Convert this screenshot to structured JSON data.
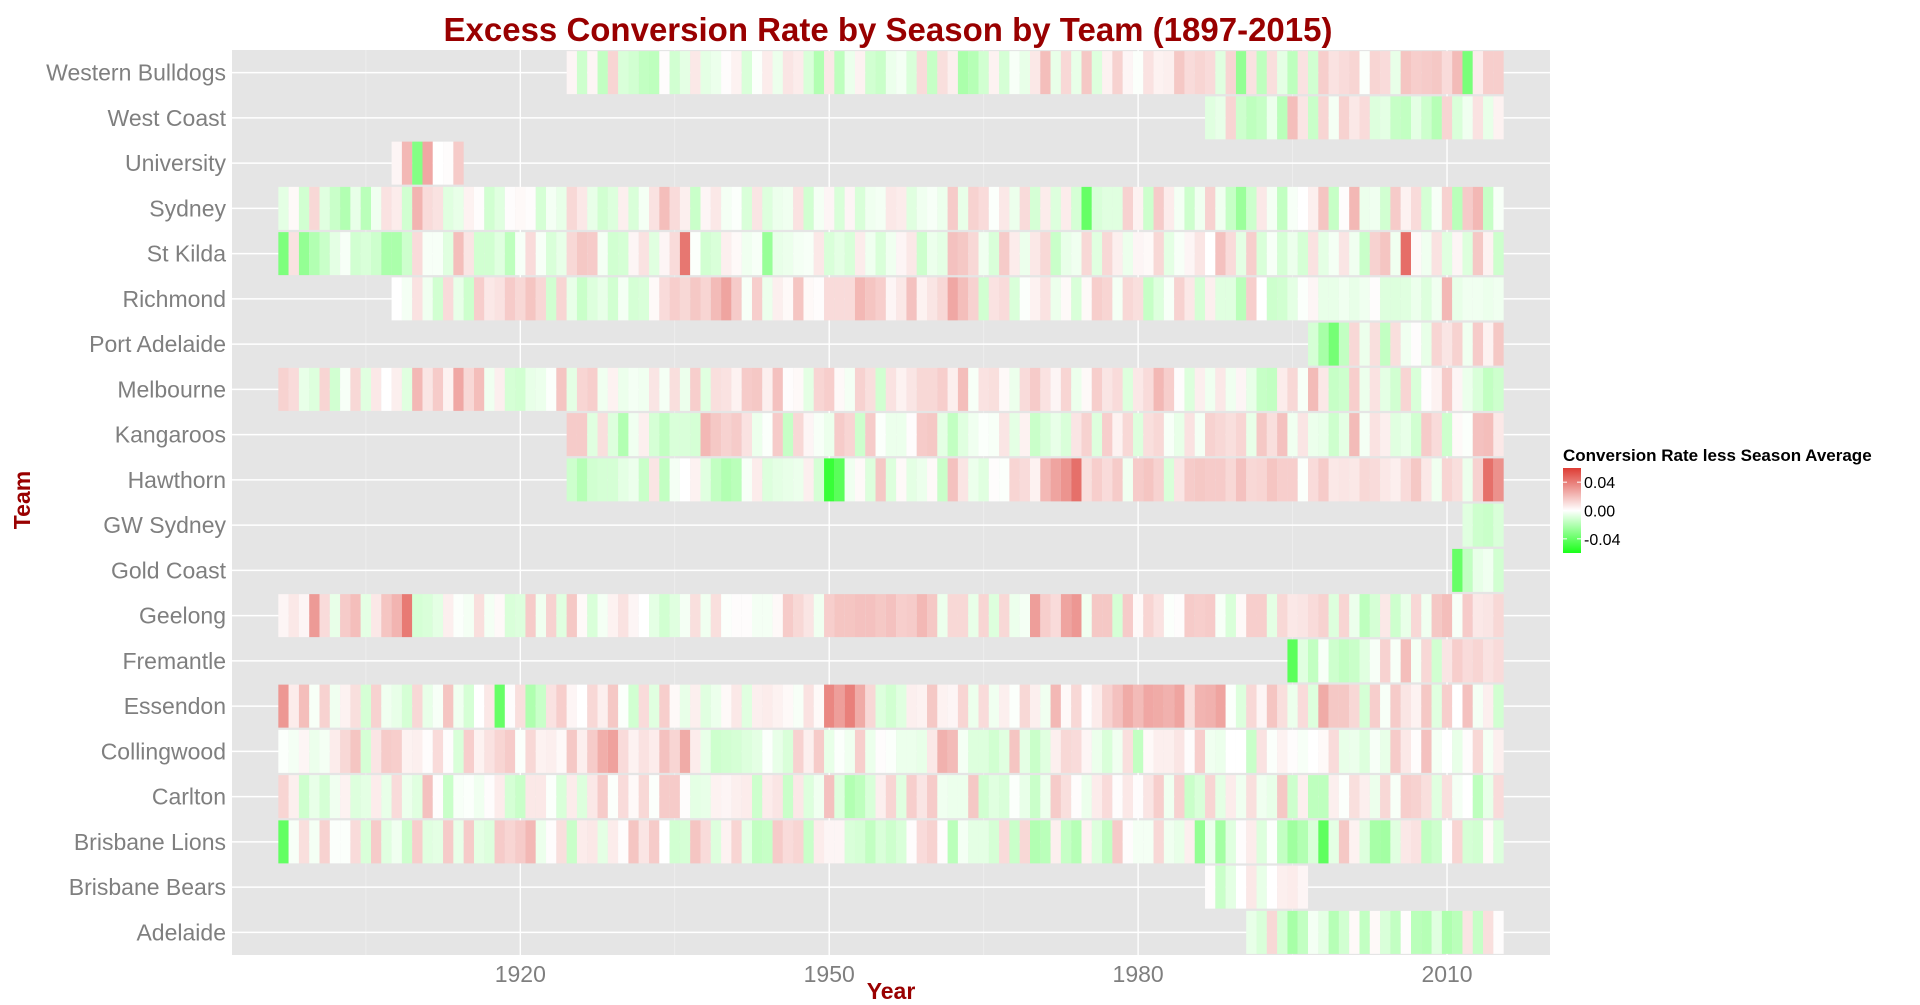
{
  "chart_data": {
    "type": "heatmap",
    "title": "Excess Conversion Rate by Season by Team (1897-2015)",
    "xlabel": "Year",
    "ylabel": "Team",
    "xlim": [
      1892,
      2020
    ],
    "x_ticks": [
      1920,
      1950,
      1980,
      2010
    ],
    "grid": true,
    "legend": {
      "title": "Conversion Rate less Season Average",
      "position": "right",
      "ticks": [
        0.04,
        0.0,
        -0.04
      ],
      "tick_labels": [
        "0.04",
        "0.00",
        "-0.04"
      ],
      "range": [
        -0.06,
        0.06
      ],
      "colors": {
        "high": "#dd3c34",
        "mid": "#ffffff",
        "low": "#19ff19"
      }
    },
    "teams": [
      "Adelaide",
      "Brisbane Bears",
      "Brisbane Lions",
      "Carlton",
      "Collingwood",
      "Essendon",
      "Fremantle",
      "Geelong",
      "Gold Coast",
      "GW Sydney",
      "Hawthorn",
      "Kangaroos",
      "Melbourne",
      "Port Adelaide",
      "Richmond",
      "St Kilda",
      "Sydney",
      "University",
      "West Coast",
      "Western Bulldogs"
    ],
    "series": [
      {
        "team": "Adelaide",
        "values": "1991:-0.006,1992:-0.01,1993:0.012,1994:-0.011,1995:-0.023,1996:-0.016,1997:-0.003,1998:-0.007,1999:-0.019,2000:-0.012,2001:0.002,2002:-0.016,2003:0.002,2004:-0.01,2005:-0.016,2006:0.001,2007:-0.018,2008:-0.019,2009:-0.008,2010:-0.021,2011:-0.018,2012:0.008,2013:-0.015,2014:0.01,2015:0.001"
      },
      {
        "team": "Brisbane Bears",
        "values": "1987:0.001,1988:-0.014,1989:-0.007,1990:0.0,1991:0.007,1992:-0.006,1993:0.0,1994:0.005,1995:0.006,1996:0.003"
      },
      {
        "team": "Brisbane Lions",
        "values": "1897:-0.041,1898:-0.002,1899:0.01,1900:-0.003,1901:0.014,1902:-0.001,1903:-0.001,1904:0.011,1905:-0.01,1906:0.016,1907:-0.008,1908:-0.004,1909:-0.013,1910:0.015,1911:-0.008,1912:-0.007,1913:0.016,1914:-0.006,1915:0.016,1916:-0.007,1917:-0.009,1918:0.016,1919:0.013,1920:0.016,1921:0.022,1922:-0.005,1923:0.001,1924:0.01,1925:-0.014,1926:0.006,1927:0.007,1928:-0.007,1929:0.006,1930:0.001,1931:0.018,1932:0.008,1933:0.016,1934:0.0,1935:-0.012,1936:-0.011,1937:0.018,1938:0.011,1939:-0.009,1940:0.004,1941:0.013,1942:-0.007,1943:-0.016,1944:-0.015,1945:0.016,1946:0.011,1947:0.013,1948:-0.014,1949:0.006,1950:0.003,1951:0.003,1952:-0.01,1953:-0.011,1954:-0.016,1955:-0.01,1956:-0.013,1957:-0.01,1958:0.001,1959:0.011,1960:0.014,1961:0.001,1962:-0.018,1963:-0.003,1964:-0.007,1965:-0.007,1966:-0.011,1967:0.011,1968:-0.014,1969:0.012,1970:-0.02,1971:-0.018,1972:0.005,1973:-0.015,1974:-0.019,1975:0.004,1976:-0.009,1977:-0.016,1978:0.016,1979:0.001,1980:-0.003,1981:-0.003,1982:0.012,1983:-0.004,1984:-0.006,1985:0.005,1986:-0.028,1987:-0.005,1988:-0.024,1989:-0.008,1990:0.001,1991:0.006,1992:-0.009,1993:-0.001,1994:-0.016,1995:-0.025,1996:-0.02,1997:-0.01,1998:-0.042,1999:-0.007,2000:0.017,2001:0.004,2002:-0.009,2003:-0.023,2004:-0.024,2005:-0.008,2006:0.007,2007:0.009,2008:-0.016,2009:-0.013,2010:0.001,2011:0.013,2012:-0.011,2013:-0.012,2014:0.002,2015:-0.009"
      },
      {
        "team": "Carlton",
        "values": "1897:0.013,1898:0.005,1899:-0.013,1900:-0.006,1901:-0.011,1902:-0.004,1903:0.004,1904:-0.009,1905:-0.007,1906:0.006,1907:-0.006,1908:0.011,1909:-0.005,1910:-0.008,1911:0.019,1912:0.001,1913:-0.014,1914:-0.002,1915:-0.001,1916:-0.004,1917:0.001,1918:0.006,1919:-0.011,1920:-0.014,1921:0.007,1922:0.007,1923:-0.001,1924:-0.01,1925:0.006,1926:-0.009,1927:0.007,1928:0.016,1929:-0.001,1930:0.011,1931:0.002,1932:0.012,1933:-0.001,1934:0.016,1935:0.016,1936:0.001,1937:-0.007,1938:-0.006,1939:0.004,1940:0.003,1941:0.005,1942:0.006,1943:-0.013,1944:0.006,1945:0.008,1946:-0.014,1947:0.007,1948:-0.009,1949:-0.004,1950:0.019,1951:-0.009,1952:-0.02,1953:-0.017,1954:-0.01,1955:0.005,1956:0.013,1957:-0.008,1958:0.015,1959:0.008,1960:0.016,1961:-0.004,1962:-0.005,1963:-0.005,1964:0.017,1965:-0.012,1966:-0.008,1967:-0.01,1968:-0.001,1969:-0.006,1970:-0.014,1971:-0.005,1972:0.016,1973:0.01,1974:0.001,1975:-0.005,1976:0.006,1977:0.011,1978:0.001,1979:0.007,1980:0.001,1981:0.008,1982:0.015,1983:-0.004,1984:0.014,1985:-0.014,1986:-0.01,1987:0.013,1988:-0.007,1989:0.006,1990:-0.004,1991:0.01,1992:-0.004,1993:-0.006,1994:0.017,1995:-0.013,1996:0.005,1997:-0.017,1998:-0.017,1999:0.005,2000:-0.001,2001:0.01,2002:0.005,2003:-0.005,2004:0.012,2005:-0.002,2006:0.015,2007:0.014,2008:0.01,2009:-0.008,2010:0.01,2011:-0.003,2012:0.0,2013:-0.017,2014:-0.006,2015:0.011"
      },
      {
        "team": "Collingwood",
        "values": "1897:-0.001,1898:-0.003,1899:0.003,1900:-0.005,1901:-0.003,1902:0.006,1903:0.012,1904:0.018,1905:-0.011,1906:0.008,1907:0.016,1908:0.015,1909:0.004,1910:0.005,1911:0.001,1912:0.011,1913:0.001,1914:-0.01,1915:0.015,1916:0.004,1917:0.009,1918:0.013,1919:0.016,1920:-0.001,1921:0.012,1922:0.004,1923:0.005,1924:0.002,1925:0.017,1926:0.005,1927:0.016,1928:0.025,1929:0.029,1930:0.011,1931:0.004,1932:0.009,1933:0.006,1934:0.019,1935:0.013,1936:0.026,1937:0.006,1938:-0.006,1939:-0.013,1940:-0.012,1941:-0.011,1942:-0.009,1943:-0.007,1944:-0.001,1945:-0.006,1946:-0.01,1947:0.014,1948:0.005,1949:0.016,1950:-0.006,1951:-0.001,1952:-0.004,1953:0.015,1954:-0.005,1955:0.001,1956:-0.001,1957:-0.005,1958:-0.005,1959:-0.006,1960:0.007,1961:0.024,1962:0.021,1963:-0.003,1964:-0.009,1965:-0.009,1966:-0.012,1967:-0.008,1968:0.018,1969:-0.007,1970:-0.014,1971:-0.008,1972:0.005,1973:0.012,1974:0.011,1975:0.003,1976:-0.005,1977:-0.01,1978:-0.004,1979:0.01,1980:-0.016,1981:0.002,1982:0.005,1983:0.005,1984:0.008,1985:0.001,1986:0.015,1987:-0.004,1988:-0.005,1989:0.0,1990:0.0,1991:-0.014,1992:0.009,1993:-0.001,1994:0.004,1995:0.001,1996:-0.002,1997:0.0,1998:0.002,1999:0.011,2000:-0.006,2001:-0.005,2002:-0.009,2003:-0.002,2004:-0.006,2005:0.016,2006:0.007,2007:0.001,2008:0.019,2009:-0.003,2010:0.0,2011:-0.006,2012:0.001,2013:0.012,2014:-0.003,2015:0.005"
      },
      {
        "team": "Essendon",
        "values": "1897:0.032,1898:0.006,1899:0.02,1900:-0.002,1901:0.014,1902:-0.004,1903:0.004,1904:0.01,1905:-0.011,1906:0.014,1907:-0.004,1908:-0.006,1909:-0.011,1910:0.012,1911:-0.006,1912:-0.002,1913:0.018,1914:-0.004,1915:-0.011,1916:0.0,1917:0.007,1918:-0.04,1919:0.001,1920:0.01,1921:-0.021,1922:-0.014,1923:0.009,1924:0.015,1925:0.003,1926:0.0,1927:0.012,1928:0.005,1929:0.017,1930:-0.001,1931:-0.012,1932:0.011,1933:-0.008,1934:0.015,1935:0.002,1936:-0.006,1937:0.005,1938:-0.008,1939:-0.005,1940:0.002,1941:0.007,1942:-0.008,1943:0.005,1944:0.006,1945:0.004,1946:0.002,1947:-0.002,1948:0.009,1949:0.002,1950:0.037,1951:0.03,1952:0.039,1953:0.026,1954:0.012,1955:-0.009,1956:-0.012,1957:-0.008,1958:0.005,1959:0.004,1960:0.017,1961:0.004,1962:0.003,1963:0.013,1964:-0.005,1965:0.011,1966:-0.004,1967:0.005,1968:-0.001,1969:0.012,1970:0.005,1971:-0.004,1972:0.022,1973:0.002,1974:0.012,1975:0.001,1976:0.006,1977:0.014,1978:0.019,1979:0.026,1980:0.021,1981:0.027,1982:0.026,1983:0.024,1984:0.028,1985:0.01,1986:0.023,1987:0.024,1988:0.028,1989:-0.001,1990:-0.009,1991:0.012,1992:0.003,1993:0.018,1994:0.01,1995:-0.005,1996:0.011,1997:-0.009,1998:0.026,1999:0.017,2000:0.017,2001:0.012,2002:-0.011,2003:0.015,2004:-0.002,2005:0.016,2006:0.008,2007:0.004,2008:0.017,2009:-0.008,2010:0.015,2011:0.0,2012:0.019,2013:-0.003,2014:0.005,2015:-0.012"
      },
      {
        "team": "Fremantle",
        "values": "1995:-0.043,1996:-0.008,1997:-0.016,1998:-0.002,1999:-0.013,2000:-0.016,2001:-0.014,2002:-0.008,2003:-0.002,2004:0.014,2005:-0.002,2006:0.02,2007:-0.003,2008:0.012,2009:-0.012,2010:0.008,2011:0.015,2012:0.011,2013:0.013,2014:0.009,2015:0.011"
      },
      {
        "team": "Geelong",
        "values": "1897:0.003,1898:0.007,1899:0.003,1900:0.031,1901:0.011,1902:-0.006,1903:0.016,1904:0.02,1905:-0.007,1906:0.007,1907:0.018,1908:0.023,1909:0.041,1910:-0.011,1911:-0.01,1912:-0.007,1913:0.005,1914:-0.001,1915:-0.003,1916:0.01,1917:-0.003,1918:0.002,1919:-0.01,1920:-0.009,1921:0.016,1922:-0.004,1923:0.014,1924:-0.008,1925:0.017,1926:0.002,1927:-0.01,1928:-0.003,1929:0.004,1930:0.009,1931:0.003,1932:0.0,1933:-0.007,1934:-0.012,1935:-0.008,1936:-0.003,1937:0.01,1938:-0.004,1939:0.01,1940:-0.001,1941:0.001,1942:0.001,1943:-0.003,1944:-0.003,1945:0.002,1946:0.016,1947:0.012,1948:0.008,1949:-0.004,1950:0.015,1951:0.018,1952:0.018,1953:0.019,1954:0.019,1955:0.017,1956:0.019,1957:0.015,1958:0.016,1959:0.022,1960:0.017,1961:-0.005,1962:0.012,1963:0.012,1964:-0.006,1965:0.013,1966:-0.009,1967:0.012,1968:-0.005,1969:-0.003,1970:0.03,1971:0.015,1972:0.011,1973:0.028,1974:0.032,1975:-0.004,1976:0.017,1977:0.017,1978:-0.011,1979:0.016,1980:0.002,1981:0.013,1982:0.009,1983:-0.001,1984:0.001,1985:0.016,1986:0.015,1987:0.016,1988:-0.002,1989:-0.01,1990:0.002,1991:0.015,1992:0.015,1993:-0.007,1994:0.012,1995:0.007,1996:0.008,1997:0.011,1998:0.014,1999:-0.009,2000:0.013,2001:-0.005,2002:-0.017,2003:-0.011,2004:0.007,2005:-0.013,2006:-0.006,2007:0.012,2008:-0.004,2009:0.017,2010:0.02,2011:-0.002,2012:0.016,2013:0.007,2014:0.008,2015:0.012"
      },
      {
        "team": "Gold Coast",
        "values": "2011:-0.04,2012:-0.016,2013:-0.006,2014:-0.004,2015:-0.012"
      },
      {
        "team": "GW Sydney",
        "values": "2012:-0.008,2013:-0.013,2014:-0.014,2015:-0.01"
      },
      {
        "team": "Hawthorn",
        "values": "1925:-0.013,1926:-0.019,1927:-0.012,1928:-0.011,1929:-0.011,1930:-0.007,1931:-0.005,1932:-0.014,1933:0.008,1934:-0.016,1935:-0.003,1936:0.0,1937:0.004,1938:-0.008,1939:-0.016,1940:-0.02,1941:-0.018,1942:-0.002,1943:0.006,1944:-0.009,1945:-0.007,1946:-0.006,1947:-0.005,1948:0.005,1949:-0.011,1950:-0.052,1951:-0.043,1952:-0.004,1953:0.002,1954:-0.009,1955:0.017,1956:-0.009,1957:0.002,1958:-0.007,1959:-0.005,1960:0.002,1961:-0.014,1962:0.019,1963:0.008,1964:-0.005,1965:-0.008,1966:0.001,1967:-0.001,1968:0.013,1969:0.011,1970:0.004,1971:0.022,1972:0.028,1973:0.033,1974:0.044,1975:0.01,1976:0.015,1977:0.011,1978:0.016,1979:-0.004,1980:0.016,1981:0.018,1982:0.014,1983:-0.01,1984:0.008,1985:0.016,1986:0.017,1987:0.016,1988:0.016,1989:0.012,1990:0.019,1991:0.012,1992:0.013,1993:0.018,1994:0.015,1995:0.015,1996:-0.001,1997:0.011,1998:0.016,1999:0.007,2000:0.008,2001:0.007,2002:0.012,2003:0.011,2004:0.007,2005:0.005,2006:0.011,2007:0.017,2008:0.007,2009:-0.004,2010:0.013,2011:0.01,2012:-0.005,2013:0.014,2014:0.044,2015:0.034"
      },
      {
        "team": "Kangaroos",
        "values": "1925:0.016,1926:0.016,1927:-0.008,1928:0.01,1929:-0.009,1930:-0.02,1931:-0.004,1932:0.005,1933:-0.011,1934:-0.016,1935:-0.01,1936:-0.01,1937:-0.011,1938:0.022,1939:0.017,1940:0.014,1941:0.016,1942:0.009,1943:-0.005,1944:-0.001,1945:0.016,1946:-0.015,1947:0.012,1948:0.003,1949:-0.002,1950:-0.005,1951:0.016,1952:0.013,1953:-0.013,1954:0.016,1955:-0.001,1956:-0.005,1957:-0.005,1958:0.001,1959:0.016,1960:0.017,1961:-0.007,1962:-0.016,1963:-0.008,1964:-0.004,1965:-0.001,1966:-0.002,1967:0.008,1968:-0.007,1969:0.004,1970:-0.014,1971:-0.01,1972:-0.006,1973:-0.01,1974:0.008,1975:0.014,1976:-0.009,1977:0.015,1978:0.004,1979:0.012,1980:-0.009,1981:0.01,1982:0.012,1983:-0.002,1984:-0.006,1985:0.009,1986:-0.003,1987:0.014,1988:0.012,1989:0.01,1990:0.013,1991:-0.006,1992:0.017,1993:0.01,1994:0.019,1995:-0.004,1996:0.008,1997:-0.005,1998:-0.006,1999:-0.013,2000:-0.007,2001:0.021,2002:-0.003,2003:0.009,2004:0.005,2005:-0.008,2006:-0.006,2007:-0.012,2008:0.016,2009:0.011,2010:-0.013,2011:0.002,2012:-0.001,2013:0.019,2014:0.02,2015:0.007"
      },
      {
        "team": "Melbourne",
        "values": "1897:0.014,1898:0.011,1899:-0.006,1900:-0.009,1901:0.013,1902:-0.012,1903:-0.002,1904:0.012,1905:-0.008,1906:0.007,1907:0.0,1908:0.005,1909:-0.008,1910:0.022,1911:0.008,1912:0.016,1913:0.004,1914:0.027,1915:0.012,1916:0.02,1917:-0.004,1918:0.005,1919:-0.011,1920:-0.012,1921:-0.006,1922:-0.005,1923:-0.001,1924:0.018,1925:-0.007,1926:0.013,1927:0.015,1928:-0.004,1929:0.004,1930:-0.005,1931:-0.003,1932:-0.004,1933:0.008,1934:-0.003,1935:0.01,1936:-0.005,1937:0.015,1938:-0.008,1939:0.01,1940:0.009,1941:0.004,1942:0.016,1943:0.017,1944:0.005,1945:0.019,1946:0.001,1947:0.002,1948:-0.007,1949:0.013,1950:0.015,1951:0.002,1952:-0.003,1953:0.014,1954:0.01,1955:-0.012,1956:0.009,1957:0.004,1958:0.008,1959:0.012,1960:0.012,1961:0.015,1962:0.005,1963:0.02,1964:-0.002,1965:0.009,1966:0.01,1967:0.002,1968:-0.005,1969:0.011,1970:0.016,1971:0.009,1972:0.003,1973:0.013,1974:-0.005,1975:0.002,1976:0.015,1977:0.008,1978:0.011,1979:-0.009,1980:0.007,1981:0.011,1982:0.022,1983:0.015,1984:0.001,1985:-0.009,1986:0.005,1987:-0.004,1988:0.007,1989:-0.004,1990:0.003,1991:-0.006,1992:-0.015,1993:-0.016,1994:0.006,1995:0.012,1996:-0.002,1997:0.021,1998:0.007,1999:-0.015,2000:-0.013,2001:0.015,2002:-0.005,2003:0.009,2004:-0.007,2005:-0.012,2006:0.013,2007:-0.01,2008:0.001,2009:0.004,2010:0.016,2011:0.003,2012:-0.005,2013:-0.01,2014:-0.016,2015:-0.013"
      },
      {
        "team": "Port Adelaide",
        "values": "1997:-0.011,1998:-0.023,1999:-0.036,2000:-0.016,2001:0.012,2002:-0.005,2003:0.01,2004:-0.016,2005:0.01,2006:-0.004,2007:0.001,2008:-0.006,2009:0.013,2010:0.008,2011:0.014,2012:-0.004,2013:0.016,2014:0.004,2015:0.017"
      },
      {
        "team": "Richmond",
        "values": "1908:0.0,1909:-0.003,1910:0.009,1911:-0.004,1912:-0.012,1913:0.011,1914:-0.006,1915:-0.013,1916:0.015,1917:0.007,1918:0.009,1919:0.016,1920:0.012,1921:0.018,1922:0.012,1923:-0.012,1924:0.013,1925:-0.006,1926:-0.014,1927:-0.009,1928:-0.006,1929:-0.012,1930:-0.003,1931:-0.011,1932:-0.01,1933:0.002,1934:0.011,1935:0.015,1936:0.012,1937:0.017,1938:0.013,1939:0.021,1940:0.028,1941:0.016,1942:-0.002,1943:0.015,1944:-0.005,1945:0.005,1946:0.002,1947:0.018,1948:0.002,1949:0.001,1950:0.011,1951:0.011,1952:0.011,1953:0.022,1954:0.018,1955:0.015,1956:0.003,1957:0.007,1958:0.019,1959:0.004,1960:0.008,1961:0.012,1962:0.027,1963:0.02,1964:0.014,1965:-0.012,1966:0.009,1967:0.011,1968:-0.01,1969:-0.001,1970:0.004,1971:0.009,1972:-0.005,1973:0.002,1974:-0.01,1975:0.002,1976:0.015,1977:0.013,1978:-0.003,1979:0.012,1980:0.01,1981:-0.015,1982:-0.009,1983:-0.002,1984:0.014,1985:0.007,1986:-0.011,1987:0.005,1988:-0.008,1989:-0.008,1990:-0.018,1991:0.015,1992:0.0,1993:-0.013,1994:-0.012,1995:-0.007,1996:-0.001,1997:0.003,1998:-0.006,1999:-0.006,2000:-0.004,2001:-0.006,2002:-0.004,2003:0.001,2004:-0.009,2005:-0.009,2006:-0.008,2007:-0.005,2008:-0.009,2009:-0.004,2010:0.022,2011:-0.006,2012:-0.004,2013:-0.004,2014:-0.005,2015:-0.004"
      },
      {
        "team": "St Kilda",
        "values": "1897:-0.034,1898:0.009,1899:-0.028,1900:-0.02,1901:-0.014,1902:-0.007,1903:-0.002,1904:-0.012,1905:-0.01,1906:-0.013,1907:-0.022,1908:-0.022,1909:-0.013,1910:0.011,1911:-0.002,1912:-0.002,1913:-0.008,1914:0.02,1915:0.008,1916:-0.012,1917:-0.012,1918:-0.008,1919:-0.017,1920:-0.002,1921:0.011,1922:-0.002,1923:-0.01,1924:-0.006,1925:0.012,1926:0.017,1927:0.016,1928:-0.003,1929:-0.012,1930:-0.011,1931:0.003,1932:0.009,1933:-0.008,1934:0.003,1935:0.011,1936:0.042,1937:-0.001,1938:-0.012,1939:-0.01,1940:0.005,1941:0.002,1942:-0.004,1943:-0.002,1944:-0.027,1945:-0.006,1946:-0.005,1947:-0.003,1948:-0.002,1949:0.007,1950:-0.01,1951:-0.007,1952:-0.01,1953:0.006,1954:-0.004,1955:-0.01,1956:-0.004,1957:0.003,1958:0.007,1959:-0.013,1960:-0.005,1961:-0.007,1962:0.019,1963:0.017,1964:0.012,1965:-0.004,1966:-0.01,1967:0.016,1968:0.006,1969:-0.005,1970:0.007,1971:0.012,1972:-0.014,1973:-0.006,1974:-0.004,1975:0.012,1976:-0.008,1977:0.012,1978:0.005,1979:-0.005,1980:0.003,1981:0.002,1982:0.012,1983:-0.007,1984:-0.002,1985:0.003,1986:0.008,1987:0.0,1988:0.019,1989:0.011,1990:-0.007,1991:0.015,1992:-0.01,1993:-0.002,1994:-0.011,1995:-0.005,1996:-0.011,1997:0.009,1998:-0.007,1999:-0.003,2000:0.008,2001:-0.004,2002:-0.014,2003:0.014,2004:0.018,2005:-0.004,2006:0.045,2007:0.002,2008:-0.004,2009:0.009,2010:-0.008,2011:0.003,2012:-0.009,2013:0.017,2014:0.004,2015:-0.013"
      },
      {
        "team": "Sydney",
        "values": "1897:-0.007,1898:0.002,1899:-0.012,1900:0.012,1901:-0.008,1902:-0.014,1903:-0.02,1904:-0.006,1905:-0.018,1906:-0.004,1907:0.009,1908:0.006,1909:-0.012,1910:0.023,1911:0.011,1912:0.009,1913:-0.008,1914:-0.006,1915:0.004,1916:0.001,1917:-0.012,1918:-0.008,1919:0.001,1920:0.002,1921:0.001,1922:-0.011,1923:-0.003,1924:-0.006,1925:0.012,1926:0.007,1927:-0.006,1928:-0.012,1929:-0.009,1930:0.005,1931:-0.01,1932:-0.003,1933:0.009,1934:0.02,1935:0.011,1936:0.005,1937:-0.014,1938:0.003,1939:0.007,1940:-0.003,1941:-0.001,1942:-0.01,1943:0.008,1944:-0.009,1945:-0.005,1946:-0.004,1947:0.009,1948:-0.012,1949:-0.003,1950:0.003,1951:-0.01,1952:0.003,1953:-0.01,1954:-0.004,1955:-0.003,1956:0.007,1957:0.006,1958:-0.008,1959:-0.004,1960:-0.002,1961:-0.005,1962:0.016,1963:-0.006,1964:0.014,1965:0.011,1966:-0.001,1967:0.007,1968:-0.005,1969:0.011,1970:-0.011,1971:0.006,1972:-0.009,1973:0.006,1974:-0.011,1975:-0.04,1976:-0.01,1977:-0.008,1978:-0.008,1979:0.014,1980:0.004,1981:-0.013,1982:0.016,1983:0.006,1984:-0.003,1985:-0.013,1986:-0.004,1987:0.014,1988:-0.004,1989:-0.015,1990:-0.026,1991:-0.013,1992:0.007,1993:-0.003,1994:-0.016,1995:-0.002,1996:0.0,1997:0.005,1998:0.018,1999:-0.015,2000:0.001,2001:0.022,2002:-0.005,2003:-0.004,2004:-0.012,2005:0.016,2006:0.004,2007:0.011,2008:-0.011,2009:-0.002,2010:0.014,2011:-0.018,2012:0.016,2013:0.022,2014:-0.015,2015:-0.002"
      },
      {
        "team": "University",
        "values": "1908:0.003,1909:0.022,1910:-0.032,1911:0.027,1912:0.0,1913:0.001,1914:0.016"
      },
      {
        "team": "West Coast",
        "values": "1987:-0.008,1988:-0.006,1989:0.013,1990:-0.013,1991:-0.017,1992:-0.015,1993:-0.005,1994:-0.018,1995:0.02,1996:0.008,1997:-0.014,1998:0.013,1999:-0.003,2000:0.014,2001:0.007,2002:0.011,2003:-0.009,2004:-0.007,2005:-0.015,2006:-0.016,2007:-0.007,2008:-0.013,2009:-0.019,2010:0.013,2011:-0.01,2012:-0.004,2013:0.009,2014:-0.006,2015:0.004"
      },
      {
        "team": "Western Bulldogs",
        "values": "1925:0.003,1926:-0.013,1927:0.003,1928:-0.016,1929:0.013,1930:-0.01,1931:-0.012,1932:-0.016,1933:-0.017,1934:0.001,1935:-0.012,1936:-0.007,1937:0.007,1938:-0.007,1939:-0.005,1940:0.001,1941:0.004,1942:-0.01,1943:-0.001,1944:0.006,1945:-0.005,1946:0.008,1947:0.006,1948:-0.01,1949:-0.02,1950:0.007,1951:-0.017,1952:-0.005,1953:0.004,1954:-0.012,1955:-0.014,1956:-0.005,1957:-0.003,1958:-0.01,1959:0.011,1960:-0.015,1961:0.01,1962:0.005,1963:-0.022,1964:-0.019,1965:-0.012,1966:0.004,1967:-0.011,1968:-0.002,1969:-0.006,1970:0.007,1971:0.02,1972:-0.006,1973:0.012,1974:-0.006,1975:0.017,1976:-0.009,1977:0.004,1978:0.014,1979:0.003,1980:-0.001,1981:0.009,1982:0.004,1983:0.005,1984:0.017,1985:0.011,1986:0.013,1987:0.011,1988:-0.008,1989:0.013,1990:-0.028,1991:0.009,1992:-0.017,1993:0.01,1994:-0.007,1995:-0.017,1996:0.009,1997:-0.012,1998:0.015,1999:0.009,2000:0.011,2001:0.013,2002:-0.001,2003:0.013,2004:0.011,2005:-0.006,2006:0.018,2007:0.015,2008:0.016,2009:0.017,2010:0.011,2011:0.021,2012:-0.035,2013:0.006,2014:0.015,2015:0.015"
      }
    ]
  }
}
